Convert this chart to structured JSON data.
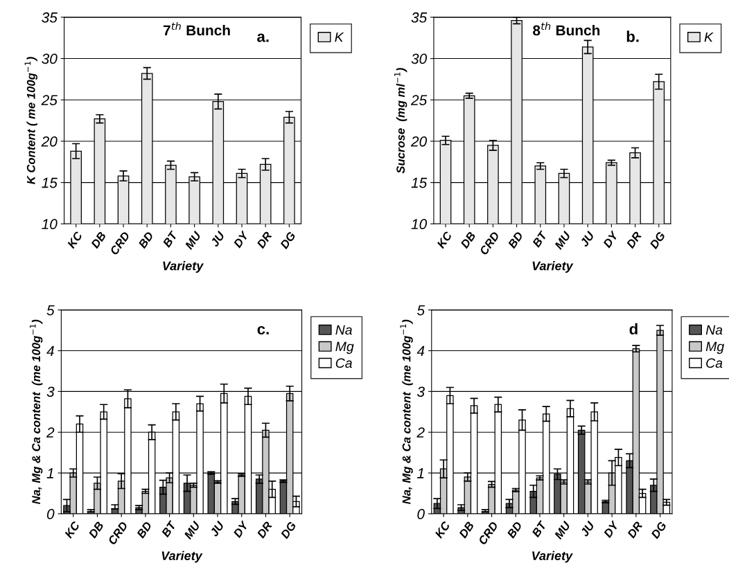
{
  "chart_data": [
    {
      "type": "bar",
      "title": "7$^{th}$ Bunch",
      "xlabel": "Variety",
      "ylabel": "K Content ( me 100g$^{−1}$)",
      "annotations": [
        "a."
      ],
      "categories": [
        "KC",
        "DB",
        "CRD",
        "BD",
        "BT",
        "MU",
        "JU",
        "DY",
        "DR",
        "DG"
      ],
      "series": [
        {
          "name": "K",
          "color": "#e6e6e6",
          "values": [
            18.8,
            22.7,
            15.8,
            28.2,
            17.1,
            15.7,
            24.8,
            16.1,
            17.2,
            22.9
          ],
          "errors": [
            0.9,
            0.5,
            0.6,
            0.7,
            0.5,
            0.5,
            0.9,
            0.5,
            0.7,
            0.7
          ]
        }
      ],
      "ylim": [
        10,
        35
      ],
      "yticks": [
        10,
        15,
        20,
        25,
        30,
        35
      ],
      "grid": "y",
      "legend": "top right"
    },
    {
      "type": "bar",
      "title": "8$^{th}$ Bunch",
      "xlabel": "Variety",
      "ylabel": "Sucrose  (mg ml$^{−1}$)",
      "annotations": [
        "b."
      ],
      "categories": [
        "KC",
        "DB",
        "CRD",
        "BD",
        "BT",
        "MU",
        "JU",
        "DY",
        "DR",
        "DG"
      ],
      "series": [
        {
          "name": "K",
          "color": "#e6e6e6",
          "values": [
            20.1,
            25.5,
            19.5,
            34.6,
            17.0,
            16.1,
            31.4,
            17.4,
            18.6,
            27.2
          ],
          "errors": [
            0.5,
            0.3,
            0.6,
            0.4,
            0.4,
            0.5,
            0.8,
            0.3,
            0.6,
            0.9
          ]
        }
      ],
      "ylim": [
        10,
        35
      ],
      "yticks": [
        10,
        15,
        20,
        25,
        30,
        35
      ],
      "grid": "y",
      "legend": "top right"
    },
    {
      "type": "bar",
      "xlabel": "Variety",
      "ylabel": "Na, Mg & Ca content  (me 100g$^{−1}$)",
      "annotations": [
        "c."
      ],
      "categories": [
        "KC",
        "DB",
        "CRD",
        "BD",
        "BT",
        "MU",
        "JU",
        "DY",
        "DR",
        "DG"
      ],
      "series": [
        {
          "name": "Na",
          "color": "#555555",
          "values": [
            0.2,
            0.05,
            0.12,
            0.15,
            0.65,
            0.75,
            1.0,
            0.3,
            0.85,
            0.8
          ],
          "errors": [
            0.15,
            [
              0.05,
              0.1
            ],
            [
              0.12,
              0.22
            ],
            0.05,
            0.17,
            0.2,
            0.03,
            0.07,
            0.1,
            0.03
          ]
        },
        {
          "name": "Mg",
          "color": "#c8c8c8",
          "values": [
            1.0,
            0.75,
            0.8,
            0.55,
            0.88,
            0.7,
            0.78,
            0.95,
            2.05,
            2.95
          ],
          "errors": [
            0.1,
            0.15,
            0.18,
            0.05,
            0.12,
            0.05,
            0.03,
            0.03,
            0.17,
            0.18
          ]
        },
        {
          "name": "Ca",
          "color": "#ffffff",
          "values": [
            2.2,
            2.5,
            2.82,
            2.0,
            2.5,
            2.7,
            2.95,
            2.88,
            0.6,
            0.3
          ],
          "errors": [
            0.2,
            0.18,
            0.22,
            0.18,
            0.2,
            0.18,
            0.23,
            0.2,
            0.2,
            0.13
          ]
        }
      ],
      "ylim": [
        0,
        5
      ],
      "yticks": [
        0,
        1,
        2,
        3,
        4,
        5
      ],
      "grid": "y",
      "legend": "top right"
    },
    {
      "type": "bar",
      "xlabel": "Variety",
      "ylabel": "Na, Mg & Ca content  (me 100g$^{−1}$)",
      "annotations": [
        "d"
      ],
      "categories": [
        "KC",
        "DB",
        "CRD",
        "BD",
        "BT",
        "MU",
        "JU",
        "DY",
        "DR",
        "DG"
      ],
      "series": [
        {
          "name": "Na",
          "color": "#555555",
          "values": [
            0.25,
            0.15,
            0.05,
            0.25,
            0.55,
            0.97,
            2.05,
            0.3,
            1.3,
            0.7
          ],
          "errors": [
            0.12,
            0.07,
            [
              0.05,
              0.1
            ],
            0.1,
            0.15,
            0.13,
            0.1,
            0.03,
            0.17,
            0.15
          ]
        },
        {
          "name": "Mg",
          "color": "#c8c8c8",
          "values": [
            1.1,
            0.9,
            0.72,
            0.58,
            0.88,
            0.78,
            0.78,
            1.0,
            4.05,
            4.5
          ],
          "errors": [
            0.22,
            0.1,
            0.07,
            0.04,
            0.05,
            0.05,
            0.05,
            0.3,
            0.08,
            0.12
          ]
        },
        {
          "name": "Ca",
          "color": "#ffffff",
          "values": [
            2.9,
            2.65,
            2.68,
            2.3,
            2.45,
            2.58,
            2.5,
            1.38,
            0.5,
            0.28
          ],
          "errors": [
            0.2,
            0.18,
            0.18,
            0.25,
            0.18,
            0.2,
            0.22,
            0.2,
            0.1,
            0.07
          ]
        }
      ],
      "ylim": [
        0,
        5
      ],
      "yticks": [
        0,
        1,
        2,
        3,
        4,
        5
      ],
      "grid": "y",
      "legend": "top right"
    }
  ]
}
